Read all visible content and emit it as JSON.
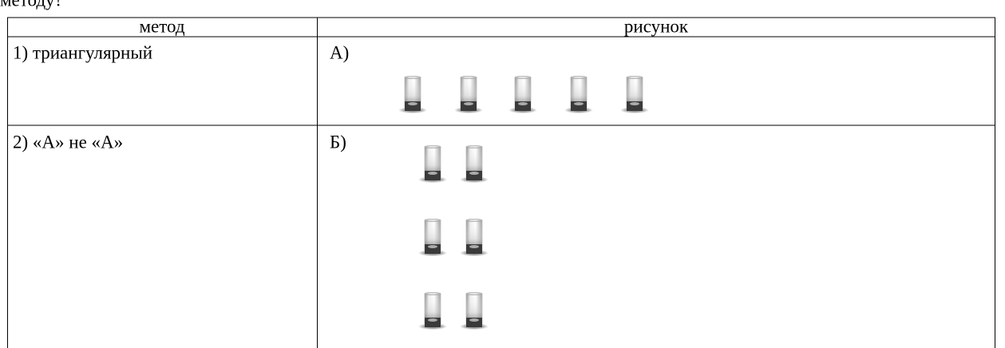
{
  "caption": "методу?",
  "table": {
    "header": [
      "метод",
      "рисунок"
    ],
    "rows": [
      [
        "1) триангулярный",
        "А)"
      ],
      [
        "2) «А» не «А»",
        "Б)"
      ]
    ]
  }
}
